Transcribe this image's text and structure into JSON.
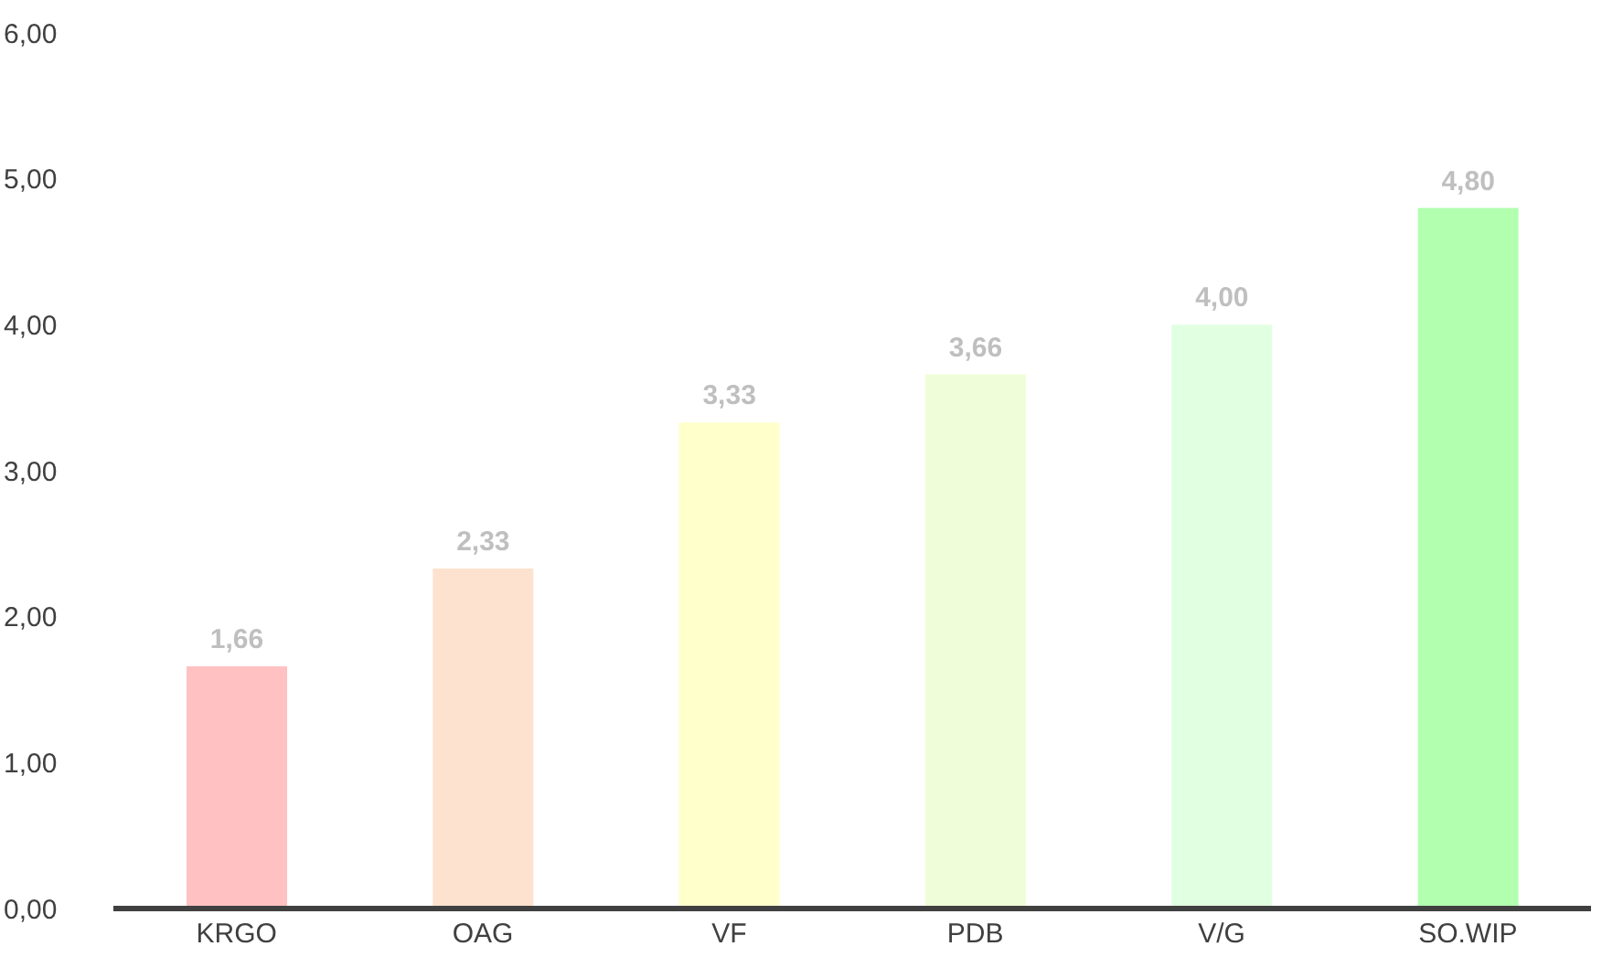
{
  "chart_data": {
    "type": "bar",
    "categories": [
      "KRGO",
      "OAG",
      "VF",
      "PDB",
      "V/G",
      "SO.WIP"
    ],
    "values": [
      1.66,
      2.33,
      3.33,
      3.66,
      4.0,
      4.8
    ],
    "colors": [
      "#ffc1c1",
      "#fde2cf",
      "#ffffcc",
      "#effed9",
      "#e1ffe1",
      "#b3ffb0"
    ],
    "value_labels": [
      "1,66",
      "2,33",
      "3,33",
      "3,66",
      "4,00",
      "4,80"
    ],
    "ylim": [
      0,
      6
    ],
    "yticks": [
      {
        "value": 0,
        "label": "0,00"
      },
      {
        "value": 1,
        "label": "1,00"
      },
      {
        "value": 2,
        "label": "2,00"
      },
      {
        "value": 3,
        "label": "3,00"
      },
      {
        "value": 4,
        "label": "4,00"
      },
      {
        "value": 5,
        "label": "5,00"
      },
      {
        "value": 6,
        "label": "6,00"
      }
    ],
    "grid": false
  }
}
